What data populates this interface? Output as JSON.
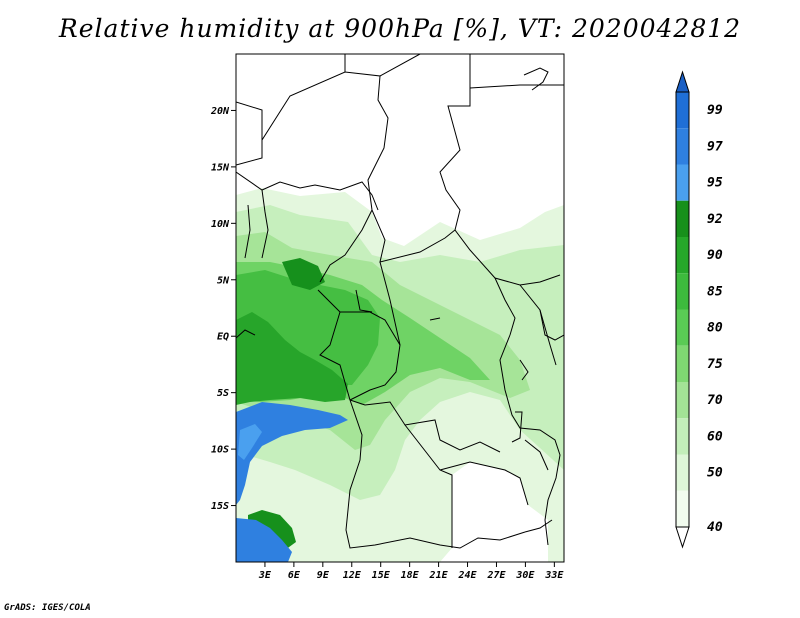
{
  "title": "Relative humidity at 900hPa [%], VT: 2020042812",
  "credit": "GrADS: IGES/COLA",
  "map": {
    "lon_range": [
      0,
      34
    ],
    "lat_range": [
      -20,
      25
    ],
    "lat_ticks": [
      {
        "value": 20,
        "label": "20N"
      },
      {
        "value": 15,
        "label": "15N"
      },
      {
        "value": 10,
        "label": "10N"
      },
      {
        "value": 5,
        "label": "5N"
      },
      {
        "value": 0,
        "label": "EQ"
      },
      {
        "value": -5,
        "label": "5S"
      },
      {
        "value": -10,
        "label": "10S"
      },
      {
        "value": -15,
        "label": "15S"
      }
    ],
    "lon_ticks": [
      {
        "value": 3,
        "label": "3E"
      },
      {
        "value": 6,
        "label": "6E"
      },
      {
        "value": 9,
        "label": "9E"
      },
      {
        "value": 12,
        "label": "12E"
      },
      {
        "value": 15,
        "label": "15E"
      },
      {
        "value": 18,
        "label": "18E"
      },
      {
        "value": 21,
        "label": "21E"
      },
      {
        "value": 24,
        "label": "24E"
      },
      {
        "value": 27,
        "label": "27E"
      },
      {
        "value": 30,
        "label": "30E"
      },
      {
        "value": 33,
        "label": "33E"
      }
    ]
  },
  "colorbar": {
    "levels": [
      {
        "label": "99",
        "color": "#1f6fd6"
      },
      {
        "label": "97",
        "color": "#2f80e0"
      },
      {
        "label": "95",
        "color": "#4aa0ef"
      },
      {
        "label": "92",
        "color": "#17901b"
      },
      {
        "label": "90",
        "color": "#26a82a"
      },
      {
        "label": "85",
        "color": "#3dbb3d"
      },
      {
        "label": "80",
        "color": "#5acb55"
      },
      {
        "label": "75",
        "color": "#7fd872"
      },
      {
        "label": "70",
        "color": "#a3e396"
      },
      {
        "label": "60",
        "color": "#c3eeba"
      },
      {
        "label": "50",
        "color": "#def6d8"
      },
      {
        "label": "40",
        "color": "#f2fcef"
      }
    ],
    "top_arrow_color": "#1a5fc4",
    "bottom_arrow_color": "#ffffff"
  }
}
